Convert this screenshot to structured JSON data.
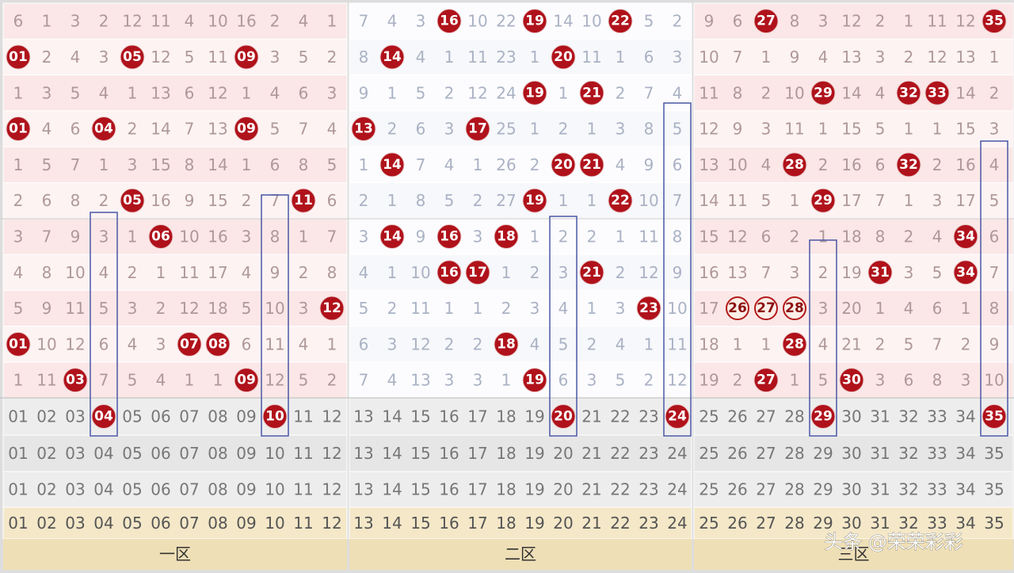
{
  "rows": [
    {
      "cells": [
        6,
        1,
        3,
        2,
        12,
        11,
        4,
        10,
        16,
        2,
        4,
        1,
        7,
        4,
        3,
        {
          "hit": "16"
        },
        10,
        22,
        {
          "hit": "19"
        },
        14,
        10,
        {
          "hit": "22"
        },
        5,
        2,
        9,
        6,
        {
          "hit": "27"
        },
        8,
        3,
        12,
        2,
        1,
        11,
        12,
        {
          "hit": "35"
        }
      ]
    },
    {
      "cells": [
        {
          "hit": "01"
        },
        2,
        4,
        3,
        {
          "hit": "05"
        },
        12,
        5,
        11,
        {
          "hit": "09"
        },
        3,
        5,
        2,
        8,
        {
          "hit": "14"
        },
        4,
        1,
        11,
        23,
        1,
        {
          "hit": "20"
        },
        11,
        1,
        6,
        3,
        10,
        7,
        1,
        9,
        4,
        13,
        3,
        2,
        12,
        13,
        1
      ]
    },
    {
      "cells": [
        1,
        3,
        5,
        4,
        1,
        13,
        6,
        12,
        1,
        4,
        6,
        3,
        9,
        1,
        5,
        2,
        12,
        24,
        {
          "hit": "19"
        },
        1,
        {
          "hit": "21"
        },
        2,
        7,
        4,
        11,
        8,
        2,
        10,
        {
          "hit": "29"
        },
        14,
        4,
        {
          "hit": "32"
        },
        {
          "hit": "33"
        },
        14,
        2
      ]
    },
    {
      "cells": [
        {
          "hit": "01"
        },
        4,
        6,
        {
          "hit": "04"
        },
        2,
        14,
        7,
        13,
        {
          "hit": "09"
        },
        5,
        7,
        4,
        {
          "hit": "13"
        },
        2,
        6,
        3,
        {
          "hit": "17"
        },
        25,
        1,
        2,
        1,
        3,
        8,
        5,
        12,
        9,
        3,
        11,
        1,
        15,
        5,
        1,
        1,
        15,
        3
      ]
    },
    {
      "cells": [
        1,
        5,
        7,
        1,
        3,
        15,
        8,
        14,
        1,
        6,
        8,
        5,
        1,
        {
          "hit": "14"
        },
        7,
        4,
        1,
        26,
        2,
        {
          "hit": "20"
        },
        {
          "hit": "21"
        },
        4,
        9,
        6,
        13,
        10,
        4,
        {
          "hit": "28"
        },
        2,
        16,
        6,
        {
          "hit": "32"
        },
        2,
        16,
        4
      ]
    },
    {
      "cells": [
        2,
        6,
        8,
        2,
        {
          "hit": "05"
        },
        16,
        9,
        15,
        2,
        7,
        {
          "hit": "11"
        },
        6,
        2,
        1,
        8,
        5,
        2,
        27,
        {
          "hit": "19"
        },
        1,
        1,
        {
          "hit": "22"
        },
        10,
        7,
        14,
        11,
        5,
        1,
        {
          "hit": "29"
        },
        17,
        7,
        1,
        3,
        17,
        5
      ]
    },
    {
      "cells": [
        3,
        7,
        9,
        3,
        1,
        {
          "hit": "06"
        },
        10,
        16,
        3,
        8,
        1,
        7,
        3,
        {
          "hit": "14"
        },
        9,
        {
          "hit": "16"
        },
        3,
        {
          "hit": "18"
        },
        1,
        2,
        2,
        1,
        11,
        8,
        15,
        12,
        6,
        2,
        1,
        18,
        8,
        2,
        4,
        {
          "hit": "34"
        },
        6
      ]
    },
    {
      "cells": [
        4,
        8,
        10,
        4,
        2,
        1,
        11,
        17,
        4,
        9,
        2,
        8,
        4,
        1,
        10,
        {
          "hit": "16"
        },
        {
          "hit": "17"
        },
        1,
        2,
        3,
        {
          "hit": "21"
        },
        2,
        12,
        9,
        16,
        13,
        7,
        3,
        2,
        19,
        {
          "hit": "31"
        },
        3,
        5,
        {
          "hit": "34"
        },
        7
      ]
    },
    {
      "cells": [
        5,
        9,
        11,
        5,
        3,
        2,
        12,
        18,
        5,
        10,
        3,
        {
          "hit": "12"
        },
        5,
        2,
        11,
        1,
        1,
        2,
        3,
        4,
        1,
        3,
        {
          "hit": "23"
        },
        10,
        17,
        {
          "hit": "26",
          "outline": true
        },
        {
          "hit": "27",
          "outline": true
        },
        {
          "hit": "28",
          "outline": true
        },
        3,
        20,
        1,
        4,
        6,
        1,
        8
      ]
    },
    {
      "cells": [
        {
          "hit": "01"
        },
        10,
        12,
        6,
        4,
        3,
        {
          "hit": "07"
        },
        {
          "hit": "08"
        },
        6,
        11,
        4,
        1,
        6,
        3,
        12,
        2,
        2,
        {
          "hit": "18"
        },
        4,
        5,
        2,
        4,
        1,
        11,
        18,
        1,
        1,
        {
          "hit": "28"
        },
        4,
        21,
        2,
        5,
        7,
        2,
        9
      ]
    },
    {
      "cells": [
        1,
        11,
        {
          "hit": "03"
        },
        7,
        5,
        4,
        1,
        1,
        {
          "hit": "09"
        },
        12,
        5,
        2,
        7,
        4,
        13,
        3,
        3,
        1,
        {
          "hit": "19"
        },
        6,
        3,
        5,
        2,
        12,
        19,
        2,
        {
          "hit": "27"
        },
        1,
        5,
        {
          "hit": "30"
        },
        3,
        6,
        8,
        3,
        10
      ]
    },
    {
      "cells": [
        "01",
        "02",
        "03",
        {
          "hit": "04"
        },
        "05",
        "06",
        "07",
        "08",
        "09",
        {
          "hit": "10"
        },
        "11",
        "12",
        "13",
        "14",
        "15",
        "16",
        "17",
        "18",
        "19",
        {
          "hit": "20"
        },
        "21",
        "22",
        "23",
        {
          "hit": "24"
        },
        "25",
        "26",
        "27",
        "28",
        {
          "hit": "29"
        },
        "30",
        "31",
        "32",
        "33",
        "34",
        {
          "hit": "35"
        }
      ]
    },
    {
      "cells": [
        "01",
        "02",
        "03",
        "04",
        "05",
        "06",
        "07",
        "08",
        "09",
        "10",
        "11",
        "12",
        "13",
        "14",
        "15",
        "16",
        "17",
        "18",
        "19",
        "20",
        "21",
        "22",
        "23",
        "24",
        "25",
        "26",
        "27",
        "28",
        "29",
        "30",
        "31",
        "32",
        "33",
        "34",
        "35"
      ]
    },
    {
      "cells": [
        "01",
        "02",
        "03",
        "04",
        "05",
        "06",
        "07",
        "08",
        "09",
        "10",
        "11",
        "12",
        "13",
        "14",
        "15",
        "16",
        "17",
        "18",
        "19",
        "20",
        "21",
        "22",
        "23",
        "24",
        "25",
        "26",
        "27",
        "28",
        "29",
        "30",
        "31",
        "32",
        "33",
        "34",
        "35"
      ]
    },
    {
      "cells": [
        "01",
        "02",
        "03",
        "04",
        "05",
        "06",
        "07",
        "08",
        "09",
        "10",
        "11",
        "12",
        "13",
        "14",
        "15",
        "16",
        "17",
        "18",
        "19",
        "20",
        "21",
        "22",
        "23",
        "24",
        "25",
        "26",
        "27",
        "28",
        "29",
        "30",
        "31",
        "32",
        "33",
        "34",
        "35"
      ]
    }
  ],
  "zones": [
    "一区",
    "二区",
    "三区"
  ],
  "watermark": "头条 @荣荣彩彩"
}
